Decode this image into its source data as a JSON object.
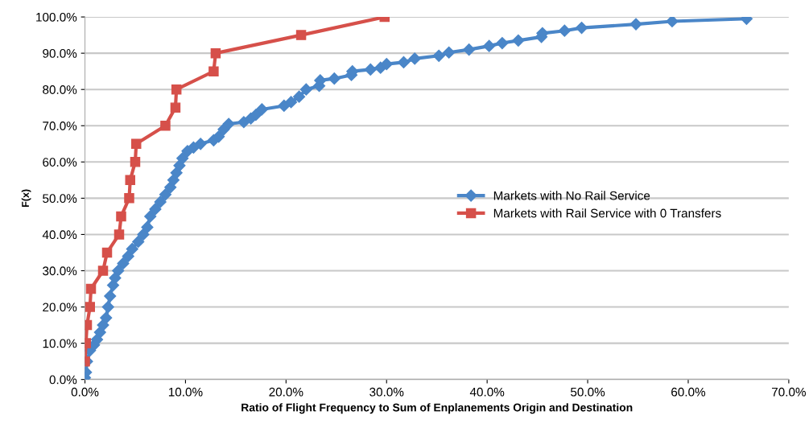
{
  "chart_data": {
    "type": "line",
    "xlabel": "Ratio of Flight Frequency to Sum of Enplanements Origin and Destination",
    "ylabel": "F(x)",
    "xlim": [
      0,
      70
    ],
    "ylim": [
      0,
      100
    ],
    "xticks": [
      {
        "value": 0,
        "label": "0.0%"
      },
      {
        "value": 10,
        "label": "10.0%"
      },
      {
        "value": 20,
        "label": "20.0%"
      },
      {
        "value": 30,
        "label": "30.0%"
      },
      {
        "value": 40,
        "label": "40.0%"
      },
      {
        "value": 50,
        "label": "50.0%"
      },
      {
        "value": 60,
        "label": "60.0%"
      },
      {
        "value": 70,
        "label": "70.0%"
      }
    ],
    "yticks": [
      {
        "value": 0,
        "label": "0.0%"
      },
      {
        "value": 10,
        "label": "10.0%"
      },
      {
        "value": 20,
        "label": "20.0%"
      },
      {
        "value": 30,
        "label": "30.0%"
      },
      {
        "value": 40,
        "label": "40.0%"
      },
      {
        "value": 50,
        "label": "50.0%"
      },
      {
        "value": 60,
        "label": "60.0%"
      },
      {
        "value": 70,
        "label": "70.0%"
      },
      {
        "value": 80,
        "label": "80.0%"
      },
      {
        "value": 90,
        "label": "90.0%"
      },
      {
        "value": 100,
        "label": "100.0%"
      }
    ],
    "grid": "y",
    "legend": "right",
    "line_style": "solid",
    "series": [
      {
        "name": "Markets with No Rail Service",
        "color": "#4a86c8",
        "marker": "diamond",
        "x": [
          0,
          0.1,
          0.2,
          0.5,
          0.9,
          1.2,
          1.5,
          1.8,
          2.1,
          2.3,
          2.5,
          2.8,
          3.0,
          3.3,
          3.8,
          4.3,
          4.7,
          5.3,
          5.8,
          6.2,
          6.5,
          7.0,
          7.5,
          8.0,
          8.5,
          8.8,
          9.1,
          9.4,
          9.7,
          10.2,
          10.8,
          11.5,
          12.8,
          13.3,
          13.8,
          14.3,
          15.8,
          16.5,
          17.0,
          17.6,
          19.8,
          20.5,
          21.3,
          22.0,
          23.3,
          23.4,
          24.8,
          26.5,
          26.6,
          28.4,
          29.4,
          30.0,
          31.7,
          32.8,
          35.2,
          36.2,
          38.2,
          40.2,
          41.5,
          43.1,
          45.4,
          45.5,
          47.7,
          49.4,
          54.8,
          58.4,
          65.8
        ],
        "values": [
          0.5,
          2,
          5,
          8,
          9.5,
          11,
          13,
          15,
          17,
          20,
          23,
          26,
          28,
          30,
          32,
          34,
          36,
          38,
          40,
          42,
          45,
          47,
          49,
          51,
          53,
          55,
          57,
          59,
          61,
          63,
          64,
          65,
          66,
          67,
          69,
          70.5,
          71,
          72,
          73,
          74.5,
          75.5,
          76.5,
          78,
          80,
          81,
          82.5,
          83,
          84,
          85,
          85.5,
          86,
          87,
          87.5,
          88.5,
          89.3,
          90.2,
          91,
          92,
          92.8,
          93.5,
          94.5,
          95.5,
          96.2,
          97,
          98,
          98.8,
          99.5
        ]
      },
      {
        "name": "Markets with Rail Service with 0 Transfers",
        "color": "#d6504a",
        "marker": "square",
        "x": [
          0.0,
          0.1,
          0.2,
          0.5,
          0.6,
          1.8,
          2.2,
          3.4,
          3.6,
          4.4,
          4.5,
          5.0,
          5.1,
          8.0,
          9.0,
          9.1,
          12.8,
          13.0,
          21.5,
          29.8
        ],
        "values": [
          5,
          10,
          15,
          20,
          25,
          30,
          35,
          40,
          45,
          50,
          55,
          60,
          65,
          70,
          75,
          80,
          85,
          90,
          95,
          100
        ]
      }
    ]
  }
}
